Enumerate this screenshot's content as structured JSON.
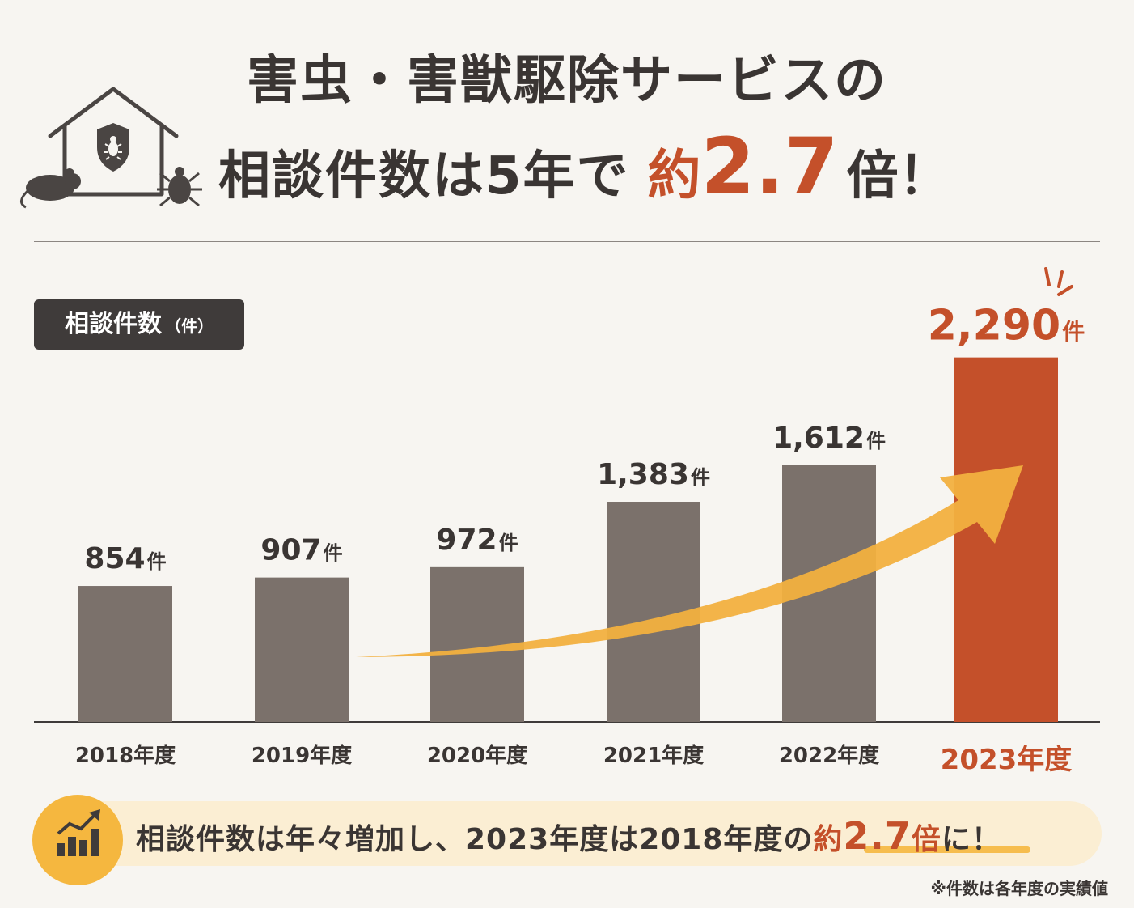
{
  "title": {
    "line1": "害虫・害獣駆除サービスの",
    "line2_main": "相談件数は5年で",
    "line2_accent": "約",
    "line2_big": "2.7",
    "line2_end": "倍！"
  },
  "unit_label": {
    "main": "相談件数",
    "unit": "（件）"
  },
  "chart_data": {
    "type": "bar",
    "categories": [
      "2018年度",
      "2019年度",
      "2020年度",
      "2021年度",
      "2022年度",
      "2023年度"
    ],
    "values": [
      854,
      907,
      972,
      1383,
      1612,
      2290
    ],
    "value_labels": [
      "854",
      "907",
      "972",
      "1,383",
      "1,612",
      "2,290"
    ],
    "unit_suffix": "件",
    "ylim": [
      0,
      2400
    ],
    "highlight_index": 5,
    "colors": {
      "bar": "#7b716b",
      "highlight": "#c4502a",
      "arrow": "#f2b03f"
    }
  },
  "footer": {
    "text_main": "相談件数は年々増加し、2023年度は2018年度の",
    "text_accent": "約",
    "text_big": "2.7",
    "text_accent2": "倍",
    "text_end": "に！",
    "icon": "bar-chart-growth-icon"
  },
  "footnote": "※件数は各年度の実績値",
  "icons": {
    "house": "house-shield-icon",
    "mouse": "mouse-icon",
    "tick": "tick-insect-icon"
  }
}
